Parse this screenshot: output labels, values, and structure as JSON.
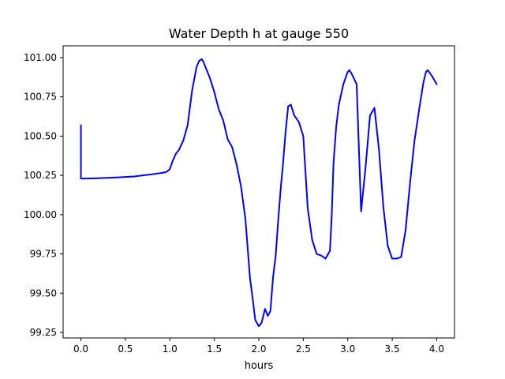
{
  "chart_data": {
    "type": "line",
    "title": "Water Depth h at gauge 550",
    "xlabel": "hours",
    "ylabel": "",
    "xlim": [
      -0.2,
      4.2
    ],
    "ylim": [
      99.215,
      101.075
    ],
    "xticks": [
      0.0,
      0.5,
      1.0,
      1.5,
      2.0,
      2.5,
      3.0,
      3.5,
      4.0
    ],
    "xtick_labels": [
      "0.0",
      "0.5",
      "1.0",
      "1.5",
      "2.0",
      "2.5",
      "3.0",
      "3.5",
      "4.0"
    ],
    "yticks": [
      99.25,
      99.5,
      99.75,
      100.0,
      100.25,
      100.5,
      100.75,
      101.0
    ],
    "ytick_labels": [
      "99.25",
      "99.50",
      "99.75",
      "100.00",
      "100.25",
      "100.50",
      "100.75",
      "101.00"
    ],
    "grid": false,
    "series": [
      {
        "color": "#0000ff",
        "x": [
          0.0,
          0.0,
          0.05,
          0.2,
          0.4,
          0.6,
          0.65,
          0.8,
          0.9,
          0.95,
          0.97,
          1.0,
          1.03,
          1.07,
          1.1,
          1.15,
          1.2,
          1.25,
          1.3,
          1.33,
          1.36,
          1.38,
          1.4,
          1.45,
          1.5,
          1.55,
          1.6,
          1.65,
          1.7,
          1.75,
          1.8,
          1.85,
          1.9,
          1.93,
          1.96,
          2.0,
          2.03,
          2.07,
          2.1,
          2.13,
          2.16,
          2.19,
          2.22,
          2.25,
          2.27,
          2.3,
          2.33,
          2.36,
          2.4,
          2.45,
          2.5,
          2.55,
          2.6,
          2.65,
          2.7,
          2.75,
          2.8,
          2.82,
          2.84,
          2.87,
          2.9,
          2.95,
          3.0,
          3.02,
          3.05,
          3.1,
          3.15,
          3.2,
          3.25,
          3.3,
          3.35,
          3.4,
          3.45,
          3.5,
          3.55,
          3.6,
          3.65,
          3.7,
          3.75,
          3.8,
          3.85,
          3.88,
          3.9,
          3.95,
          4.0
        ],
        "values": [
          100.57,
          100.23,
          100.23,
          100.232,
          100.237,
          100.243,
          100.247,
          100.257,
          100.265,
          100.27,
          100.275,
          100.29,
          100.34,
          100.39,
          100.41,
          100.47,
          100.57,
          100.79,
          100.94,
          100.98,
          100.99,
          100.97,
          100.94,
          100.87,
          100.78,
          100.67,
          100.6,
          100.48,
          100.43,
          100.32,
          100.18,
          99.97,
          99.6,
          99.47,
          99.33,
          99.29,
          99.31,
          99.4,
          99.355,
          99.385,
          99.6,
          99.74,
          99.98,
          100.19,
          100.31,
          100.52,
          100.69,
          100.7,
          100.63,
          100.59,
          100.5,
          100.04,
          99.84,
          99.75,
          99.74,
          99.72,
          99.77,
          100.0,
          100.33,
          100.56,
          100.7,
          100.83,
          100.91,
          100.92,
          100.89,
          100.83,
          100.02,
          100.3,
          100.63,
          100.68,
          100.42,
          100.05,
          99.8,
          99.72,
          99.72,
          99.73,
          99.9,
          100.2,
          100.47,
          100.66,
          100.84,
          100.91,
          100.92,
          100.88,
          100.83
        ]
      }
    ]
  }
}
